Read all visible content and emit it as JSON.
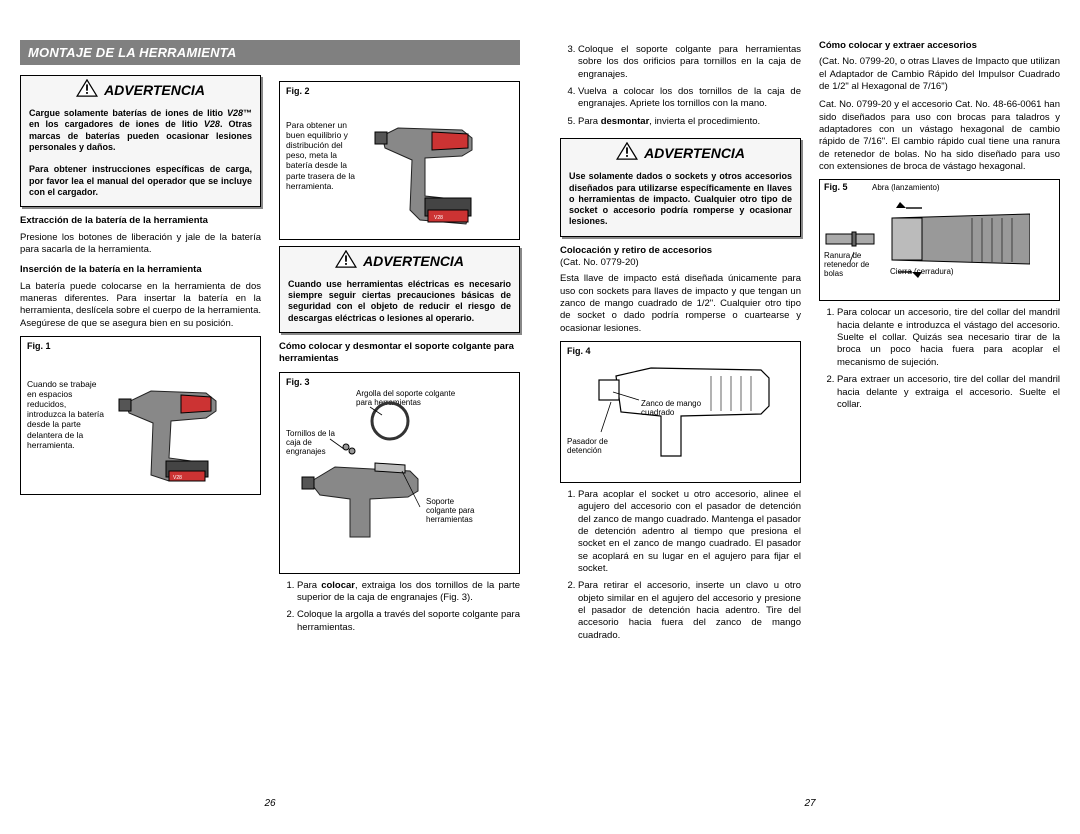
{
  "banner": "MONTAJE DE LA HERRAMIENTA",
  "warn_label": "ADVERTENCIA",
  "warn1": "<b>Cargue solamente baterías de iones de litio <i>V28</i>™ en los cargadores de iones de litio <i>V28</i>. Otras marcas de baterías pueden ocasionar lesiones personales y daños.</b><br><br><b>Para obtener instrucciones específicas de carga, por favor lea el manual del operador que se incluye con el cargador.</b>",
  "p_l1_h1": "Extracción de la batería de la herramienta",
  "p_l1_t1": "Presione los botones de liberación y jale de la batería para sacarla de la herramienta.",
  "p_l1_h2": "Inserción de la batería en la herramienta",
  "p_l1_t2": "La batería puede colocarse en la herramienta de dos maneras diferentes. Para insertar la batería en la herramienta, deslícela sobre el cuerpo de la herramienta. Asegúrese de que se asegura bien en su posición.",
  "fig1": "Fig. 1",
  "fig1_txt": "Cuando se trabaje en espacios reducidos, introduzca la batería desde la parte delantera de la herramienta.",
  "fig2": "Fig. 2",
  "fig2_txt": "Para obtener un buen equilibrio y distribución del peso, meta la batería desde la parte trasera de la herramienta.",
  "warn2": "<b>Cuando use herramientas eléctricas es necesario siempre seguir ciertas precauciones básicas de seguridad con el objeto de reducir el riesgo de descargas eléctricas o lesiones al operario.</b>",
  "p_l2_h1": "Cómo colocar y desmontar el soporte colgante para herramientas",
  "fig3": "Fig. 3",
  "fig3_l1": "Argolla del soporte colgante para herramientas",
  "fig3_l2": "Tornillos de la caja de engranajes",
  "fig3_l3": "Soporte colgante para herramientas",
  "ol_a_1": "Para <b>colocar</b>, extraiga los dos tornillos de la parte superior de la caja de engranajes (Fig. 3).",
  "ol_a_2": "Coloque la argolla a través del soporte colgante para herramientas.",
  "ol_b_3": "Coloque el soporte colgante para herramientas sobre los dos orificios para tornillos en la caja de engranajes.",
  "ol_b_4": "Vuelva a colocar los dos tornillos de la caja de engranajes. Apriete los tornillos con la mano.",
  "ol_b_5": "Para <b>desmontar</b>, invierta el procedimiento.",
  "warn3": "<b>Use solamente dados o sockets y otros accesorios diseñados para utilizarse específicamente en llaves o herramientas de impacto. Cualquier otro tipo de socket o accesorio podría romperse y ocasionar lesiones.</b>",
  "p_r1_h1": "Colocación y retiro de accesorios",
  "p_r1_sub": "(Cat. No. 0779-20)",
  "p_r1_t1": "Esta llave de impacto está diseñada únicamente para uso con sockets para llaves de impacto y que tengan un zanco de mango cuadrado de 1/2\". Cualquier otro tipo de socket o dado podría romperse o cuartearse y ocasionar lesiones.",
  "fig4": "Fig. 4",
  "fig4_l1": "Zanco de mango cuadrado",
  "fig4_l2": "Pasador de detención",
  "ol_c_1": "Para acoplar el socket u otro accesorio, alinee el agujero del accesorio con el pasador de detención del zanco de mango cuadrado. Mantenga el pasador de detención adentro al tiempo que presiona el socket en el zanco de mango cuadrado. El pasador se acoplará en su lugar en el agujero para fijar el socket.",
  "ol_c_2": "Para retirar el accesorio, inserte un clavo u otro objeto similar en el agujero del accesorio y presione el pasador de detención hacia adentro. Tire del accesorio hacia fuera del zanco de mango cuadrado.",
  "p_r2_h1": "Cómo colocar y extraer accesorios",
  "p_r2_t1": "(Cat. No. 0799-20, o otras Llaves de Impacto que utilizan el Adaptador de Cambio Rápido del Impulsor Cuadrado de 1/2\" al Hexagonal de 7/16\")",
  "p_r2_t2": "Cat. No. 0799-20 y el accesorio Cat. No. 48-66-0061 han sido diseñados para uso con brocas para taladros y adaptadores con un vástago hexagonal de cambio rápido de 7/16\". El cambio rápido cual tiene una ranura de retenedor de bolas. No ha sido diseñado para uso con extensiones de broca de vástago hexagonal.",
  "fig5": "Fig. 5",
  "fig5_l1": "Abra (lanzamiento)",
  "fig5_l2": "Ranura de retenedor de bolas",
  "fig5_l3": "Cierra (cerradura)",
  "ol_d_1": "Para colocar un accesorio, tire del collar del mandril hacia delante e introduzca el vástago del accesorio. Suelte el collar. Quizás sea necesario tirar de la broca un poco hacia fuera para acoplar el mecanismo de sujeción.",
  "ol_d_2": "Para extraer un accesorio, tire del collar del mandril hacia delante y extraiga el accesorio. Suelte el collar.",
  "pg26": "26",
  "pg27": "27"
}
